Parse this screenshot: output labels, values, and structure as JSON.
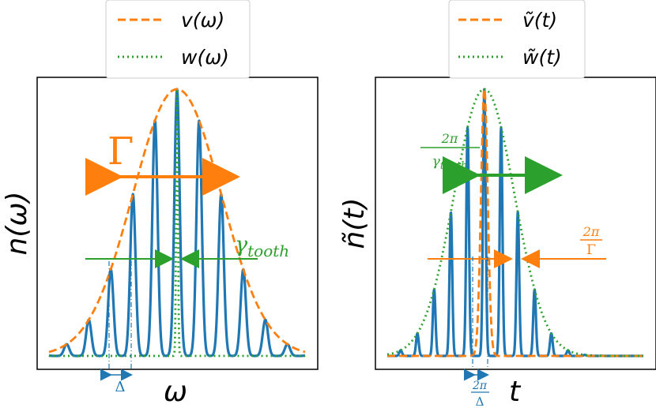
{
  "chart_data": [
    {
      "type": "line",
      "panel": "left",
      "xlabel": "ω",
      "ylabel": "n(ω)",
      "legend": {
        "placement": "top-center-outside",
        "entries": [
          "v(ω)",
          "w(ω)"
        ]
      },
      "series": [
        {
          "name": "n(ω)",
          "style": "solid",
          "color": "#1f77b4",
          "comb": {
            "center": 0,
            "spacing": 1,
            "count": 9,
            "gaussian_envelope_sigma": 2.0,
            "peak_height": 1.0,
            "tooth_width": 0.12
          }
        },
        {
          "name": "v(ω)",
          "style": "dashed",
          "color": "#ff7f0e",
          "gaussian": {
            "center": 0,
            "sigma": 2.0,
            "height": 1.0
          }
        },
        {
          "name": "w(ω)",
          "style": "dotted",
          "color": "#2ca02c",
          "gaussian": {
            "center": 0,
            "sigma": 0.04,
            "height": 1.0
          }
        }
      ],
      "annotations": {
        "envelope_width_label": "Γ",
        "tooth_width_label": "γtooth",
        "spacing_label": "Δ"
      },
      "grid": false
    },
    {
      "type": "line",
      "panel": "right",
      "xlabel": "t",
      "ylabel": "ñ(t)",
      "legend": {
        "placement": "top-center-outside",
        "entries": [
          "ṽ(t)",
          "w̃(t)"
        ]
      },
      "series": [
        {
          "name": "ñ(t)",
          "style": "solid",
          "color": "#1f77b4",
          "comb": {
            "center": 0,
            "spacing": 1,
            "count": 11,
            "gaussian_envelope_sigma": 1.8,
            "peak_height": 1.0,
            "tooth_width": 0.08
          }
        },
        {
          "name": "ṽ(t)",
          "style": "dashed",
          "color": "#ff7f0e",
          "gaussian": {
            "center": 0,
            "sigma": 0.2,
            "height": 1.0
          }
        },
        {
          "name": "w̃(t)",
          "style": "dotted",
          "color": "#2ca02c",
          "gaussian": {
            "center": 0,
            "sigma": 1.8,
            "height": 1.0
          }
        }
      ],
      "annotations": {
        "envelope_width_label": "2π / γtooth",
        "tooth_width_label": "2π / Γ",
        "spacing_label": "2π / Δ"
      },
      "grid": false
    }
  ],
  "labels": {
    "left_legend_1": "v(ω)",
    "left_legend_2": "w(ω)",
    "right_legend_1": "ṽ(t)",
    "right_legend_2": "w̃(t)",
    "left_xlabel": "ω",
    "left_ylabel": "n(ω)",
    "right_xlabel": "t",
    "right_ylabel": "ñ(t)",
    "gamma": "Γ",
    "gamma_tooth_base": "γ",
    "gamma_tooth_sub": "tooth",
    "delta": "Δ",
    "two_pi": "2π",
    "big_gamma": "Γ"
  }
}
